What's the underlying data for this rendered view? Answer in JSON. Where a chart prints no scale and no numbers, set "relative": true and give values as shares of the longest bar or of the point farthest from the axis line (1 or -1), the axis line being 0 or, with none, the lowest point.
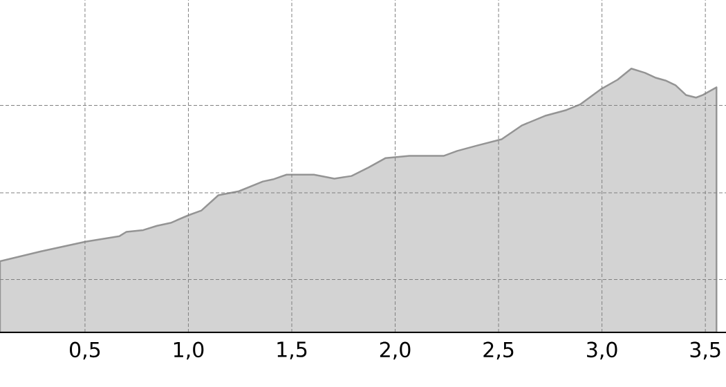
{
  "chart_data": {
    "type": "area",
    "relative": true,
    "color": "#d3d3d3",
    "grid": true,
    "line_style": "solid",
    "marker": "none",
    "xlim": [
      0.089,
      3.6
    ],
    "xticks": [
      {
        "value": 0.5,
        "label": "0,5"
      },
      {
        "value": 1.0,
        "label": "1,0"
      },
      {
        "value": 1.5,
        "label": "1,5"
      },
      {
        "value": 2.0,
        "label": "2,0"
      },
      {
        "value": 2.5,
        "label": "2,5"
      },
      {
        "value": 3.0,
        "label": "3,0"
      },
      {
        "value": 3.5,
        "label": "3,5"
      }
    ],
    "x": [
      0.089,
      0.287,
      0.502,
      0.667,
      0.7,
      0.782,
      0.848,
      0.914,
      1.0,
      1.063,
      1.145,
      1.244,
      1.36,
      1.409,
      1.475,
      1.607,
      1.706,
      1.789,
      1.871,
      1.954,
      2.069,
      2.234,
      2.3,
      2.399,
      2.515,
      2.614,
      2.729,
      2.828,
      2.894,
      2.993,
      3.076,
      3.142,
      3.208,
      3.257,
      3.307,
      3.356,
      3.406,
      3.455,
      3.488,
      3.554
    ],
    "values": [
      0.27,
      0.307,
      0.344,
      0.365,
      0.381,
      0.388,
      0.404,
      0.415,
      0.444,
      0.462,
      0.52,
      0.535,
      0.572,
      0.58,
      0.598,
      0.598,
      0.583,
      0.593,
      0.625,
      0.661,
      0.669,
      0.669,
      0.688,
      0.709,
      0.732,
      0.785,
      0.822,
      0.843,
      0.864,
      0.921,
      0.958,
      1,
      0.984,
      0.966,
      0.955,
      0.937,
      0.9,
      0.89,
      0.9,
      0.929
    ]
  }
}
